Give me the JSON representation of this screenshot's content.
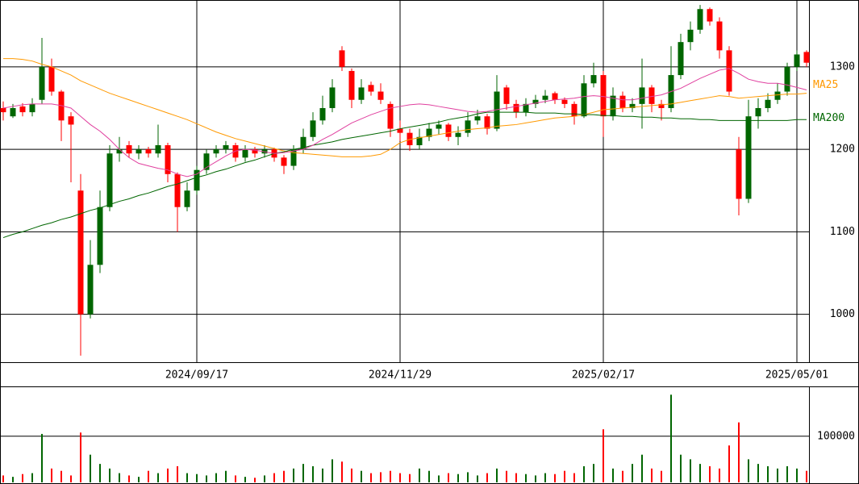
{
  "chart_data": [
    {
      "type": "candlestick",
      "up_color": "#006600",
      "down_color": "#ff0000",
      "ylim": [
        942,
        1381
      ],
      "yticks": [
        1000,
        1100,
        1200,
        1300
      ],
      "grid": true,
      "categories": [
        null,
        null,
        null,
        null,
        null,
        null,
        null,
        null,
        null,
        null,
        null,
        null,
        null,
        null,
        null,
        null,
        null,
        null,
        null,
        null,
        "2024/09/17",
        null,
        null,
        null,
        null,
        null,
        null,
        null,
        null,
        null,
        null,
        null,
        null,
        null,
        null,
        null,
        null,
        null,
        null,
        null,
        null,
        "2024/11/29",
        null,
        null,
        null,
        null,
        null,
        null,
        null,
        null,
        null,
        null,
        null,
        null,
        null,
        null,
        null,
        null,
        null,
        null,
        null,
        null,
        "2025/02/17",
        null,
        null,
        null,
        null,
        null,
        null,
        null,
        null,
        null,
        null,
        null,
        null,
        null,
        null,
        null,
        null,
        null,
        null,
        null,
        "2025/05/01",
        null
      ],
      "candles": [
        [
          1250,
          1258,
          1235,
          1245
        ],
        [
          1240,
          1255,
          1238,
          1250
        ],
        [
          1252,
          1256,
          1240,
          1245
        ],
        [
          1245,
          1262,
          1240,
          1255
        ],
        [
          1260,
          1335,
          1255,
          1300
        ],
        [
          1300,
          1310,
          1265,
          1270
        ],
        [
          1270,
          1272,
          1210,
          1235
        ],
        [
          1240,
          1245,
          1160,
          1230
        ],
        [
          1150,
          1170,
          950,
          1000
        ],
        [
          1000,
          1090,
          995,
          1060
        ],
        [
          1060,
          1150,
          1050,
          1130
        ],
        [
          1130,
          1205,
          1125,
          1195
        ],
        [
          1195,
          1215,
          1185,
          1200
        ],
        [
          1205,
          1210,
          1190,
          1195
        ],
        [
          1195,
          1205,
          1188,
          1200
        ],
        [
          1200,
          1203,
          1190,
          1195
        ],
        [
          1195,
          1230,
          1190,
          1205
        ],
        [
          1205,
          1208,
          1160,
          1170
        ],
        [
          1170,
          1172,
          1100,
          1130
        ],
        [
          1130,
          1160,
          1125,
          1150
        ],
        [
          1150,
          1180,
          1145,
          1175
        ],
        [
          1175,
          1200,
          1170,
          1195
        ],
        [
          1195,
          1205,
          1190,
          1200
        ],
        [
          1200,
          1210,
          1195,
          1205
        ],
        [
          1205,
          1208,
          1185,
          1190
        ],
        [
          1190,
          1205,
          1185,
          1200
        ],
        [
          1200,
          1203,
          1190,
          1195
        ],
        [
          1195,
          1205,
          1190,
          1200
        ],
        [
          1200,
          1202,
          1185,
          1190
        ],
        [
          1190,
          1193,
          1170,
          1180
        ],
        [
          1180,
          1205,
          1175,
          1200
        ],
        [
          1200,
          1225,
          1195,
          1215
        ],
        [
          1215,
          1245,
          1210,
          1235
        ],
        [
          1235,
          1265,
          1230,
          1250
        ],
        [
          1250,
          1285,
          1245,
          1275
        ],
        [
          1320,
          1325,
          1295,
          1300
        ],
        [
          1295,
          1298,
          1250,
          1260
        ],
        [
          1260,
          1285,
          1255,
          1275
        ],
        [
          1278,
          1282,
          1265,
          1270
        ],
        [
          1270,
          1280,
          1255,
          1260
        ],
        [
          1255,
          1258,
          1215,
          1225
        ],
        [
          1225,
          1235,
          1210,
          1220
        ],
        [
          1220,
          1225,
          1198,
          1205
        ],
        [
          1205,
          1225,
          1200,
          1215
        ],
        [
          1215,
          1232,
          1210,
          1225
        ],
        [
          1225,
          1235,
          1218,
          1230
        ],
        [
          1230,
          1232,
          1210,
          1215
        ],
        [
          1215,
          1228,
          1205,
          1220
        ],
        [
          1220,
          1245,
          1215,
          1235
        ],
        [
          1235,
          1248,
          1230,
          1240
        ],
        [
          1240,
          1243,
          1218,
          1225
        ],
        [
          1225,
          1290,
          1222,
          1270
        ],
        [
          1275,
          1278,
          1248,
          1255
        ],
        [
          1255,
          1260,
          1238,
          1245
        ],
        [
          1245,
          1262,
          1240,
          1255
        ],
        [
          1255,
          1266,
          1250,
          1260
        ],
        [
          1260,
          1272,
          1256,
          1265
        ],
        [
          1268,
          1270,
          1255,
          1260
        ],
        [
          1260,
          1263,
          1250,
          1255
        ],
        [
          1255,
          1258,
          1230,
          1240
        ],
        [
          1240,
          1290,
          1238,
          1280
        ],
        [
          1280,
          1305,
          1275,
          1290
        ],
        [
          1290,
          1295,
          1215,
          1240
        ],
        [
          1240,
          1275,
          1235,
          1265
        ],
        [
          1265,
          1270,
          1245,
          1250
        ],
        [
          1250,
          1262,
          1245,
          1255
        ],
        [
          1255,
          1310,
          1225,
          1275
        ],
        [
          1275,
          1278,
          1245,
          1255
        ],
        [
          1255,
          1260,
          1235,
          1250
        ],
        [
          1250,
          1325,
          1245,
          1290
        ],
        [
          1290,
          1340,
          1285,
          1330
        ],
        [
          1330,
          1355,
          1320,
          1345
        ],
        [
          1345,
          1375,
          1340,
          1370
        ],
        [
          1370,
          1372,
          1350,
          1355
        ],
        [
          1355,
          1360,
          1310,
          1320
        ],
        [
          1320,
          1325,
          1265,
          1270
        ],
        [
          1200,
          1215,
          1120,
          1140
        ],
        [
          1140,
          1260,
          1135,
          1240
        ],
        [
          1240,
          1262,
          1225,
          1250
        ],
        [
          1250,
          1268,
          1245,
          1260
        ],
        [
          1260,
          1280,
          1255,
          1270
        ],
        [
          1270,
          1305,
          1265,
          1300
        ],
        [
          1300,
          1320,
          1295,
          1315
        ],
        [
          1318,
          1320,
          1300,
          1305
        ]
      ],
      "series": [
        {
          "name": "MA25",
          "color": "#ff9900",
          "values": [
            1310,
            1310,
            1309,
            1307,
            1303,
            1300,
            1295,
            1290,
            1283,
            1278,
            1273,
            1268,
            1264,
            1260,
            1256,
            1252,
            1248,
            1244,
            1240,
            1236,
            1231,
            1226,
            1221,
            1217,
            1213,
            1210,
            1207,
            1204,
            1201,
            1198,
            1196,
            1195,
            1194,
            1193,
            1192,
            1191,
            1191,
            1191,
            1192,
            1194,
            1200,
            1208,
            1212,
            1214,
            1216,
            1218,
            1220,
            1222,
            1224,
            1225,
            1226,
            1228,
            1229,
            1230,
            1232,
            1234,
            1236,
            1238,
            1239,
            1240,
            1242,
            1245,
            1248,
            1249,
            1250,
            1251,
            1252,
            1253,
            1254,
            1255,
            1257,
            1259,
            1261,
            1263,
            1265,
            1264,
            1262,
            1263,
            1264,
            1265,
            1266,
            1267,
            1267,
            1268
          ]
        },
        {
          "name": "MA200",
          "color": "#006600",
          "values": [
            1093,
            1097,
            1100,
            1104,
            1108,
            1111,
            1115,
            1118,
            1122,
            1126,
            1129,
            1133,
            1137,
            1140,
            1144,
            1147,
            1151,
            1155,
            1158,
            1162,
            1166,
            1169,
            1173,
            1176,
            1180,
            1184,
            1187,
            1191,
            1195,
            1197,
            1200,
            1202,
            1205,
            1207,
            1209,
            1212,
            1214,
            1216,
            1218,
            1220,
            1222,
            1225,
            1227,
            1229,
            1231,
            1233,
            1236,
            1238,
            1240,
            1243,
            1245,
            1245,
            1245,
            1245,
            1245,
            1244,
            1244,
            1244,
            1243,
            1243,
            1242,
            1242,
            1241,
            1241,
            1240,
            1240,
            1239,
            1239,
            1238,
            1238,
            1237,
            1237,
            1236,
            1236,
            1235,
            1235,
            1235,
            1235,
            1235,
            1235,
            1235,
            1235,
            1236,
            1236
          ]
        },
        {
          "color": "#e0409f",
          "values": [
            1250,
            1252,
            1254,
            1255,
            1255,
            1255,
            1253,
            1250,
            1240,
            1230,
            1222,
            1212,
            1200,
            1190,
            1183,
            1180,
            1177,
            1175,
            1170,
            1167,
            1170,
            1178,
            1185,
            1192,
            1198,
            1200,
            1199,
            1197,
            1195,
            1196,
            1198,
            1200,
            1205,
            1212,
            1218,
            1225,
            1232,
            1237,
            1242,
            1246,
            1250,
            1252,
            1254,
            1255,
            1254,
            1252,
            1250,
            1248,
            1246,
            1245,
            1246,
            1248,
            1250,
            1252,
            1254,
            1256,
            1258,
            1260,
            1261,
            1262,
            1264,
            1265,
            1264,
            1262,
            1260,
            1260,
            1262,
            1264,
            1266,
            1270,
            1274,
            1280,
            1286,
            1291,
            1296,
            1298,
            1292,
            1285,
            1282,
            1280,
            1280,
            1278,
            1275,
            1272
          ]
        }
      ]
    },
    {
      "type": "bar",
      "ylim": [
        0,
        208000
      ],
      "yticks": [
        100000
      ],
      "grid": true,
      "values": [
        15000,
        12000,
        18000,
        20000,
        105000,
        30000,
        25000,
        15000,
        108000,
        60000,
        40000,
        30000,
        20000,
        15000,
        12000,
        25000,
        20000,
        30000,
        35000,
        20000,
        18000,
        15000,
        20000,
        25000,
        15000,
        12000,
        10000,
        15000,
        20000,
        25000,
        30000,
        40000,
        35000,
        30000,
        50000,
        45000,
        30000,
        25000,
        20000,
        22000,
        25000,
        20000,
        18000,
        30000,
        25000,
        15000,
        20000,
        18000,
        22000,
        15000,
        20000,
        30000,
        25000,
        20000,
        18000,
        15000,
        20000,
        18000,
        25000,
        20000,
        35000,
        40000,
        115000,
        30000,
        25000,
        40000,
        60000,
        30000,
        25000,
        190000,
        60000,
        50000,
        40000,
        35000,
        30000,
        80000,
        130000,
        50000,
        40000,
        35000,
        30000,
        35000,
        30000,
        25000
      ]
    }
  ]
}
